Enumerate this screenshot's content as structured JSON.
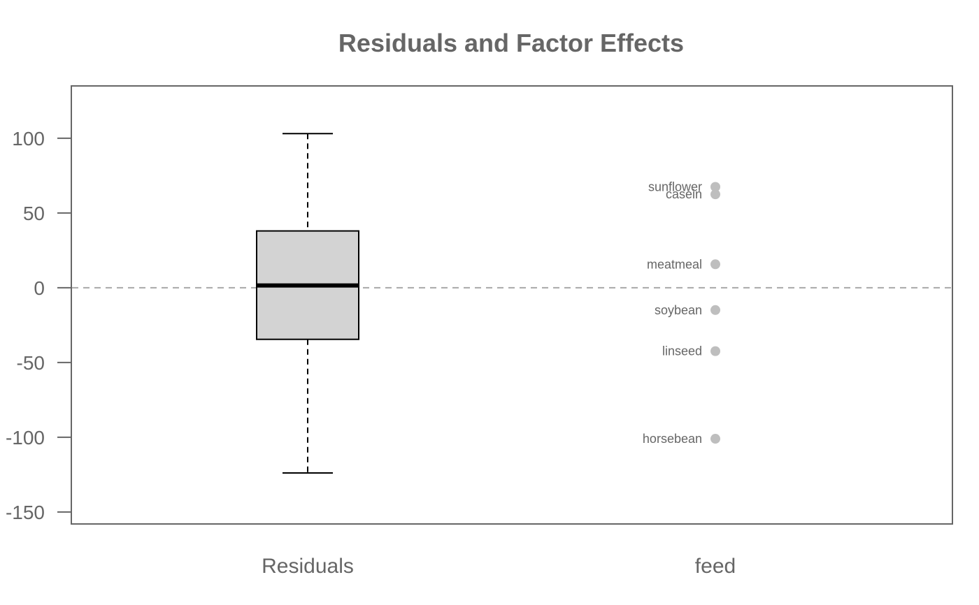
{
  "chart_data": {
    "type": "boxplot",
    "title": "Residuals and Factor Effects",
    "xlabel": "",
    "ylabel": "",
    "ylim": [
      -158,
      135
    ],
    "yticks": [
      100,
      50,
      0,
      -50,
      -100,
      -150
    ],
    "categories": [
      "Residuals",
      "feed"
    ],
    "reference_line": 0,
    "grid": false,
    "residuals_box": {
      "whisker_min": -123.9,
      "q1": -34.5,
      "median": 1.5,
      "q3": 38.0,
      "whisker_max": 103.1
    },
    "effects": [
      {
        "label": "sunflower",
        "value": 67.5
      },
      {
        "label": "casein",
        "value": 62.5
      },
      {
        "label": "meatmeal",
        "value": 15.7
      },
      {
        "label": "soybean",
        "value": -14.9
      },
      {
        "label": "linseed",
        "value": -42.4
      },
      {
        "label": "horsebean",
        "value": -101.0
      }
    ],
    "colors": {
      "box_fill": "#d3d3d3",
      "box_line": "#000000",
      "points": "#bebebe",
      "reference_line": "#a8a8a8",
      "text": "#666666",
      "frame": "#666666"
    }
  }
}
